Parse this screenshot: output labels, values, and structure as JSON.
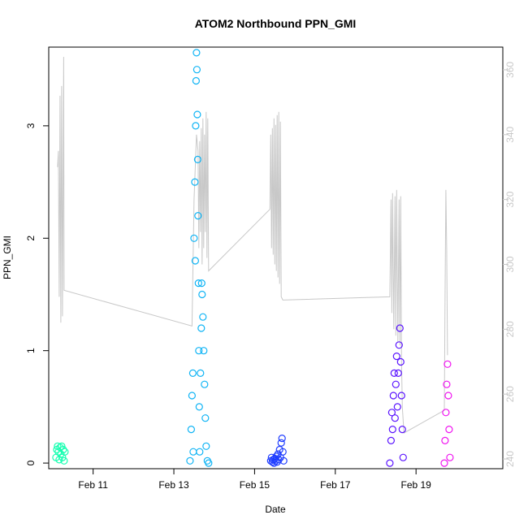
{
  "chart_data": {
    "type": "scatter",
    "title": "ATOM2 Northbound PPN_GMI",
    "xlabel": "Date",
    "ylabel": "PPN_GMI",
    "x_domain_days": [
      9.9,
      21.15
    ],
    "y_left_lim": [
      -0.05,
      3.7
    ],
    "y_right_lim": [
      237,
      367
    ],
    "x_ticks": [
      {
        "value": 11,
        "label": "Feb 11"
      },
      {
        "value": 13,
        "label": "Feb 13"
      },
      {
        "value": 15,
        "label": "Feb 15"
      },
      {
        "value": 17,
        "label": "Feb 17"
      },
      {
        "value": 19,
        "label": "Feb 19"
      }
    ],
    "y_left_ticks": [
      {
        "value": 0,
        "label": "0"
      },
      {
        "value": 1,
        "label": "1"
      },
      {
        "value": 2,
        "label": "2"
      },
      {
        "value": 3,
        "label": "3"
      }
    ],
    "y_right_ticks": [
      {
        "value": 240,
        "label": "240"
      },
      {
        "value": 260,
        "label": "260"
      },
      {
        "value": 280,
        "label": "280"
      },
      {
        "value": 300,
        "label": "300"
      },
      {
        "value": 320,
        "label": "320"
      },
      {
        "value": 340,
        "label": "340"
      },
      {
        "value": 360,
        "label": "360"
      }
    ],
    "secondary_line": {
      "color": "#c8c8c8",
      "points": [
        [
          10.12,
          330
        ],
        [
          10.14,
          335
        ],
        [
          10.16,
          290
        ],
        [
          10.18,
          352
        ],
        [
          10.2,
          282
        ],
        [
          10.22,
          355
        ],
        [
          10.24,
          284
        ],
        [
          10.27,
          364
        ],
        [
          10.28,
          292
        ],
        [
          13.45,
          281
        ],
        [
          13.5,
          320
        ],
        [
          13.53,
          330
        ],
        [
          13.56,
          340
        ],
        [
          13.6,
          335
        ],
        [
          13.62,
          305
        ],
        [
          13.64,
          338
        ],
        [
          13.66,
          310
        ],
        [
          13.68,
          342
        ],
        [
          13.7,
          300
        ],
        [
          13.72,
          345
        ],
        [
          13.74,
          305
        ],
        [
          13.76,
          340
        ],
        [
          13.78,
          310
        ],
        [
          13.8,
          347
        ],
        [
          13.82,
          302
        ],
        [
          13.84,
          345
        ],
        [
          13.86,
          298
        ],
        [
          15.38,
          317
        ],
        [
          15.4,
          340
        ],
        [
          15.42,
          305
        ],
        [
          15.44,
          342
        ],
        [
          15.46,
          303
        ],
        [
          15.48,
          345
        ],
        [
          15.5,
          300
        ],
        [
          15.52,
          343
        ],
        [
          15.54,
          298
        ],
        [
          15.56,
          346
        ],
        [
          15.58,
          296
        ],
        [
          15.6,
          347
        ],
        [
          15.62,
          294
        ],
        [
          15.64,
          344
        ],
        [
          15.66,
          290
        ],
        [
          15.7,
          289
        ],
        [
          18.35,
          290
        ],
        [
          18.38,
          320
        ],
        [
          18.4,
          285
        ],
        [
          18.42,
          322
        ],
        [
          18.45,
          280
        ],
        [
          18.48,
          321
        ],
        [
          18.5,
          278
        ],
        [
          18.52,
          323
        ],
        [
          18.55,
          276
        ],
        [
          18.58,
          320
        ],
        [
          18.6,
          275
        ],
        [
          18.62,
          321
        ],
        [
          18.64,
          270
        ],
        [
          18.66,
          256
        ],
        [
          18.7,
          248
        ],
        [
          19.7,
          255
        ],
        [
          19.72,
          290
        ],
        [
          19.74,
          323
        ],
        [
          19.76,
          305
        ],
        [
          19.78,
          272
        ]
      ]
    },
    "series": [
      {
        "color": "#14ffb0",
        "points": [
          [
            10.08,
            0.05
          ],
          [
            10.1,
            0.12
          ],
          [
            10.12,
            0.15
          ],
          [
            10.14,
            0.1
          ],
          [
            10.16,
            0.03
          ],
          [
            10.18,
            0.14
          ],
          [
            10.2,
            0.08
          ],
          [
            10.22,
            0.15
          ],
          [
            10.24,
            0.05
          ],
          [
            10.26,
            0.12
          ],
          [
            10.28,
            0.02
          ],
          [
            10.3,
            0.1
          ]
        ]
      },
      {
        "color": "#0fb4f5",
        "points": [
          [
            13.4,
            0.02
          ],
          [
            13.43,
            0.3
          ],
          [
            13.45,
            0.6
          ],
          [
            13.47,
            0.8
          ],
          [
            13.48,
            0.1
          ],
          [
            13.5,
            2.0
          ],
          [
            13.52,
            2.5
          ],
          [
            13.53,
            1.8
          ],
          [
            13.54,
            3.0
          ],
          [
            13.55,
            3.4
          ],
          [
            13.56,
            3.65
          ],
          [
            13.57,
            3.5
          ],
          [
            13.58,
            3.1
          ],
          [
            13.59,
            2.7
          ],
          [
            13.6,
            2.2
          ],
          [
            13.61,
            1.6
          ],
          [
            13.62,
            1.0
          ],
          [
            13.63,
            0.5
          ],
          [
            13.64,
            0.1
          ],
          [
            13.66,
            0.8
          ],
          [
            13.68,
            1.2
          ],
          [
            13.69,
            1.6
          ],
          [
            13.7,
            1.5
          ],
          [
            13.72,
            1.3
          ],
          [
            13.74,
            1.0
          ],
          [
            13.76,
            0.7
          ],
          [
            13.78,
            0.4
          ],
          [
            13.8,
            0.15
          ],
          [
            13.83,
            0.02
          ],
          [
            13.86,
            0.0
          ]
        ]
      },
      {
        "color": "#1e3cff",
        "points": [
          [
            15.4,
            0.02
          ],
          [
            15.42,
            0.05
          ],
          [
            15.44,
            0.01
          ],
          [
            15.46,
            0.03
          ],
          [
            15.48,
            0.0
          ],
          [
            15.5,
            0.04
          ],
          [
            15.52,
            0.02
          ],
          [
            15.54,
            0.06
          ],
          [
            15.56,
            0.01
          ],
          [
            15.58,
            0.08
          ],
          [
            15.6,
            0.03
          ],
          [
            15.62,
            0.12
          ],
          [
            15.64,
            0.05
          ],
          [
            15.66,
            0.18
          ],
          [
            15.68,
            0.22
          ],
          [
            15.7,
            0.1
          ],
          [
            15.72,
            0.02
          ]
        ]
      },
      {
        "color": "#5a14ff",
        "points": [
          [
            18.35,
            0.0
          ],
          [
            18.38,
            0.2
          ],
          [
            18.4,
            0.45
          ],
          [
            18.42,
            0.3
          ],
          [
            18.44,
            0.6
          ],
          [
            18.46,
            0.8
          ],
          [
            18.48,
            0.4
          ],
          [
            18.5,
            0.7
          ],
          [
            18.52,
            0.95
          ],
          [
            18.54,
            0.5
          ],
          [
            18.56,
            0.8
          ],
          [
            18.58,
            1.05
          ],
          [
            18.6,
            1.2
          ],
          [
            18.62,
            0.9
          ],
          [
            18.64,
            0.6
          ],
          [
            18.66,
            0.3
          ],
          [
            18.68,
            0.05
          ]
        ]
      },
      {
        "color": "#f014f0",
        "points": [
          [
            19.7,
            0.0
          ],
          [
            19.72,
            0.2
          ],
          [
            19.74,
            0.45
          ],
          [
            19.76,
            0.7
          ],
          [
            19.78,
            0.88
          ],
          [
            19.8,
            0.6
          ],
          [
            19.82,
            0.3
          ],
          [
            19.84,
            0.05
          ]
        ]
      }
    ]
  }
}
